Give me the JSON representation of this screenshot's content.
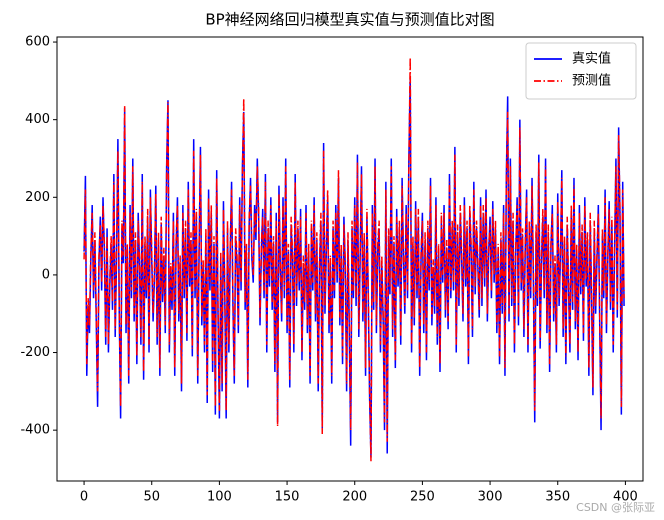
{
  "chart_data": {
    "type": "line",
    "title": "BP神经网络回归模型真实值与预测值比对图",
    "watermark": "CSDN @张际亚",
    "xlim": [
      -20,
      413
    ],
    "xticks": [
      0,
      50,
      100,
      150,
      200,
      250,
      300,
      350,
      400
    ],
    "ylim": [
      -531,
      613
    ],
    "yticks": [
      -400,
      -200,
      0,
      200,
      400,
      600
    ],
    "legend": "upper right",
    "grid": false,
    "x": [
      0,
      1,
      2,
      3,
      4,
      5,
      6,
      7,
      8,
      9,
      10,
      11,
      12,
      13,
      14,
      15,
      16,
      17,
      18,
      19,
      20,
      21,
      22,
      23,
      24,
      25,
      26,
      27,
      28,
      29,
      30,
      31,
      32,
      33,
      34,
      35,
      36,
      37,
      38,
      39,
      40,
      41,
      42,
      43,
      44,
      45,
      46,
      47,
      48,
      49,
      50,
      51,
      52,
      53,
      54,
      55,
      56,
      57,
      58,
      59,
      60,
      61,
      62,
      63,
      64,
      65,
      66,
      67,
      68,
      69,
      70,
      71,
      72,
      73,
      74,
      75,
      76,
      77,
      78,
      79,
      80,
      81,
      82,
      83,
      84,
      85,
      86,
      87,
      88,
      89,
      90,
      91,
      92,
      93,
      94,
      95,
      96,
      97,
      98,
      99,
      100,
      101,
      102,
      103,
      104,
      105,
      106,
      107,
      108,
      109,
      110,
      111,
      112,
      113,
      114,
      115,
      116,
      117,
      118,
      119,
      120,
      121,
      122,
      123,
      124,
      125,
      126,
      127,
      128,
      129,
      130,
      131,
      132,
      133,
      134,
      135,
      136,
      137,
      138,
      139,
      140,
      141,
      142,
      143,
      144,
      145,
      146,
      147,
      148,
      149,
      150,
      151,
      152,
      153,
      154,
      155,
      156,
      157,
      158,
      159,
      160,
      161,
      162,
      163,
      164,
      165,
      166,
      167,
      168,
      169,
      170,
      171,
      172,
      173,
      174,
      175,
      176,
      177,
      178,
      179,
      180,
      181,
      182,
      183,
      184,
      185,
      186,
      187,
      188,
      189,
      190,
      191,
      192,
      193,
      194,
      195,
      196,
      197,
      198,
      199,
      200,
      201,
      202,
      203,
      204,
      205,
      206,
      207,
      208,
      209,
      210,
      211,
      212,
      213,
      214,
      215,
      216,
      217,
      218,
      219,
      220,
      221,
      222,
      223,
      224,
      225,
      226,
      227,
      228,
      229,
      230,
      231,
      232,
      233,
      234,
      235,
      236,
      237,
      238,
      239,
      240,
      241,
      242,
      243,
      244,
      245,
      246,
      247,
      248,
      249,
      250,
      251,
      252,
      253,
      254,
      255,
      256,
      257,
      258,
      259,
      260,
      261,
      262,
      263,
      264,
      265,
      266,
      267,
      268,
      269,
      270,
      271,
      272,
      273,
      274,
      275,
      276,
      277,
      278,
      279,
      280,
      281,
      282,
      283,
      284,
      285,
      286,
      287,
      288,
      289,
      290,
      291,
      292,
      293,
      294,
      295,
      296,
      297,
      298,
      299,
      300,
      301,
      302,
      303,
      304,
      305,
      306,
      307,
      308,
      309,
      310,
      311,
      312,
      313,
      314,
      315,
      316,
      317,
      318,
      319,
      320,
      321,
      322,
      323,
      324,
      325,
      326,
      327,
      328,
      329,
      330,
      331,
      332,
      333,
      334,
      335,
      336,
      337,
      338,
      339,
      340,
      341,
      342,
      343,
      344,
      345,
      346,
      347,
      348,
      349,
      350,
      351,
      352,
      353,
      354,
      355,
      356,
      357,
      358,
      359,
      360,
      361,
      362,
      363,
      364,
      365,
      366,
      367,
      368,
      369,
      370,
      371,
      372,
      373,
      374,
      375,
      376,
      377,
      378,
      379,
      380,
      381,
      382,
      383,
      384,
      385,
      386,
      387,
      388,
      389,
      390,
      391,
      392,
      393,
      394,
      395,
      396,
      397,
      398,
      399
    ],
    "series": [
      {
        "name": "真实值",
        "color": "#0000ff",
        "style": "solid",
        "values": [
          60,
          255,
          -260,
          -80,
          -150,
          40,
          180,
          -60,
          90,
          -120,
          -340,
          30,
          150,
          -40,
          200,
          60,
          -180,
          120,
          -200,
          -30,
          80,
          -90,
          260,
          -160,
          40,
          350,
          -100,
          -370,
          120,
          30,
          430,
          -150,
          60,
          -280,
          180,
          -60,
          300,
          -120,
          90,
          -230,
          160,
          20,
          -180,
          260,
          -270,
          80,
          -60,
          150,
          -200,
          220,
          40,
          -120,
          -10,
          230,
          -180,
          90,
          -260,
          130,
          -70,
          50,
          -150,
          280,
          450,
          -200,
          10,
          -90,
          160,
          -260,
          70,
          200,
          -120,
          30,
          -300,
          180,
          -60,
          120,
          -170,
          240,
          -30,
          90,
          -210,
          350,
          -60,
          150,
          -280,
          60,
          330,
          -130,
          20,
          -200,
          100,
          -330,
          220,
          -40,
          160,
          -250,
          80,
          -360,
          270,
          -110,
          -370,
          40,
          -300,
          190,
          -60,
          -370,
          120,
          -200,
          60,
          240,
          -80,
          -280,
          100,
          30,
          -150,
          200,
          -40,
          280,
          420,
          -90,
          60,
          -290,
          130,
          250,
          40,
          -20,
          180,
          90,
          300,
          150,
          -130,
          60,
          170,
          -60,
          260,
          -200,
          120,
          -30,
          200,
          -90,
          80,
          -250,
          160,
          -380,
          230,
          20,
          -120,
          200,
          -60,
          300,
          -150,
          60,
          -290,
          130,
          40,
          -200,
          260,
          -80,
          120,
          -40,
          170,
          -220,
          30,
          -90,
          180,
          -150,
          60,
          -280,
          120,
          -40,
          200,
          -120,
          90,
          -300,
          20,
          140,
          -400,
          340,
          -100,
          60,
          200,
          -150,
          30,
          -280,
          120,
          -60,
          180,
          -20,
          250,
          -130,
          60,
          -230,
          150,
          20,
          -300,
          90,
          -150,
          -440,
          120,
          -60,
          200,
          -80,
          310,
          -160,
          40,
          280,
          -120,
          90,
          -260,
          150,
          -60,
          -320,
          -470,
          180,
          -90,
          300,
          -150,
          60,
          120,
          -200,
          30,
          -120,
          -400,
          240,
          -460,
          100,
          -50,
          300,
          -160,
          80,
          -240,
          170,
          -30,
          120,
          -180,
          250,
          40,
          -100,
          180,
          -60,
          300,
          510,
          -200,
          80,
          -130,
          190,
          -60,
          150,
          -260,
          40,
          160,
          -150,
          90,
          -220,
          120,
          -40,
          250,
          -130,
          20,
          -100,
          200,
          -180,
          60,
          -250,
          140,
          -20,
          180,
          -110,
          70,
          -140,
          260,
          -60,
          120,
          -40,
          330,
          -200,
          110,
          -80,
          160,
          40,
          -120,
          200,
          -30,
          120,
          -230,
          160,
          60,
          -160,
          240,
          -50,
          120,
          20,
          -110,
          200,
          -80,
          160,
          -30,
          220,
          -120,
          60,
          150,
          -60,
          190,
          -20,
          120,
          -150,
          60,
          -230,
          90,
          -100,
          180,
          -260,
          250,
          460,
          -120,
          300,
          -80,
          140,
          -200,
          60,
          200,
          -130,
          400,
          -40,
          100,
          -160,
          70,
          220,
          -200,
          120,
          -60,
          250,
          -10,
          -380,
          110,
          -80,
          310,
          -190,
          30,
          150,
          -60,
          300,
          -150,
          110,
          -250,
          70,
          180,
          -120,
          30,
          -200,
          210,
          -80,
          40,
          270,
          -160,
          80,
          -230,
          130,
          -40,
          -200,
          160,
          -90,
          250,
          -140,
          60,
          -220,
          180,
          -50,
          110,
          -170,
          200,
          -30,
          90,
          -260,
          140,
          -60,
          -310,
          120,
          -100,
          40,
          180,
          -120,
          -400,
          100,
          -60,
          220,
          -150,
          40,
          190,
          -90,
          130,
          -200,
          60,
          300,
          -110,
          380,
          150,
          -360,
          240,
          -80
        ]
      },
      {
        "name": "预测值",
        "color": "#ff0000",
        "style": "dashdot",
        "values": [
          40,
          220,
          -230,
          -60,
          -130,
          60,
          160,
          -40,
          110,
          -100,
          -300,
          50,
          130,
          -20,
          180,
          80,
          -160,
          100,
          -180,
          -10,
          100,
          -70,
          240,
          -140,
          60,
          320,
          -80,
          -340,
          140,
          50,
          435,
          -130,
          80,
          -260,
          160,
          -40,
          280,
          -100,
          110,
          -210,
          140,
          40,
          -160,
          240,
          -250,
          100,
          -40,
          170,
          -180,
          200,
          60,
          -100,
          10,
          210,
          -160,
          110,
          -240,
          150,
          -50,
          70,
          -130,
          260,
          445,
          -180,
          30,
          -70,
          140,
          -240,
          90,
          180,
          -100,
          50,
          -280,
          160,
          -40,
          140,
          -150,
          220,
          -10,
          110,
          -190,
          320,
          -40,
          170,
          -260,
          80,
          310,
          -110,
          40,
          -180,
          120,
          -310,
          200,
          -20,
          180,
          -230,
          100,
          -340,
          250,
          -90,
          -350,
          60,
          -280,
          170,
          -40,
          -350,
          140,
          -180,
          80,
          220,
          -60,
          -260,
          120,
          50,
          -130,
          180,
          -20,
          260,
          455,
          -70,
          80,
          -270,
          150,
          230,
          60,
          0,
          160,
          110,
          280,
          170,
          -110,
          80,
          150,
          -40,
          240,
          -180,
          140,
          -10,
          180,
          -70,
          100,
          -230,
          140,
          -390,
          210,
          40,
          -100,
          180,
          -40,
          280,
          -130,
          80,
          -270,
          150,
          60,
          -180,
          240,
          -60,
          140,
          -20,
          150,
          -200,
          50,
          -70,
          160,
          -130,
          80,
          -260,
          140,
          -20,
          180,
          -100,
          110,
          -280,
          40,
          160,
          -410,
          320,
          -80,
          80,
          220,
          -130,
          50,
          -260,
          140,
          -40,
          160,
          0,
          270,
          -110,
          80,
          -210,
          130,
          40,
          -280,
          110,
          -130,
          -400,
          140,
          -40,
          180,
          -60,
          290,
          -140,
          60,
          260,
          -100,
          110,
          -240,
          170,
          -40,
          -300,
          -480,
          160,
          -70,
          280,
          -130,
          80,
          140,
          -180,
          50,
          -100,
          -380,
          220,
          -430,
          120,
          -30,
          280,
          -140,
          100,
          -220,
          150,
          -10,
          140,
          -160,
          230,
          60,
          -80,
          160,
          -40,
          280,
          560,
          -180,
          100,
          -110,
          170,
          -40,
          170,
          -240,
          60,
          140,
          -130,
          110,
          -200,
          140,
          -20,
          230,
          -110,
          40,
          -80,
          180,
          -160,
          80,
          -230,
          160,
          0,
          160,
          -90,
          90,
          -120,
          240,
          -40,
          140,
          -20,
          310,
          -180,
          130,
          -60,
          180,
          60,
          -100,
          180,
          -10,
          140,
          -210,
          180,
          80,
          -140,
          220,
          -30,
          140,
          40,
          -90,
          180,
          -60,
          180,
          -10,
          200,
          -100,
          80,
          130,
          -40,
          170,
          0,
          140,
          -130,
          80,
          -210,
          110,
          -80,
          160,
          -240,
          230,
          420,
          -100,
          280,
          -60,
          160,
          -180,
          80,
          180,
          -110,
          380,
          -20,
          120,
          -140,
          90,
          200,
          -180,
          140,
          -40,
          230,
          10,
          -350,
          130,
          -60,
          290,
          -170,
          50,
          170,
          -40,
          280,
          -130,
          130,
          -230,
          90,
          160,
          -100,
          50,
          -180,
          190,
          -60,
          60,
          250,
          -140,
          100,
          -210,
          150,
          -20,
          -180,
          180,
          -70,
          230,
          -120,
          80,
          -200,
          160,
          -30,
          130,
          -150,
          180,
          -10,
          110,
          -240,
          160,
          -40,
          -290,
          140,
          -80,
          60,
          160,
          -100,
          -370,
          120,
          -40,
          200,
          -130,
          60,
          170,
          -70,
          150,
          -180,
          80,
          280,
          -90,
          360,
          170,
          -340,
          220,
          -60
        ]
      }
    ]
  }
}
